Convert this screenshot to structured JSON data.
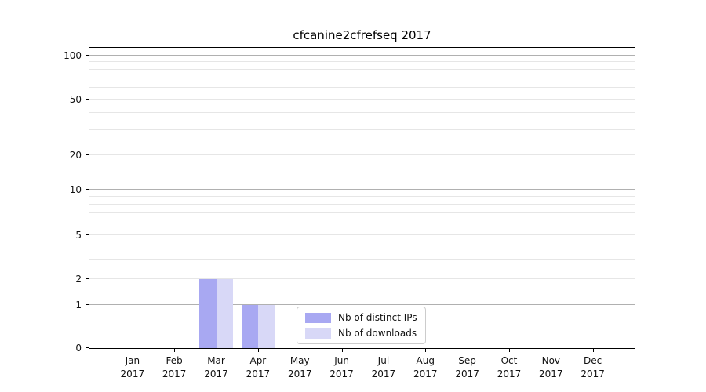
{
  "title": "cfcanine2cfrefseq 2017",
  "chart_data": {
    "type": "bar",
    "title": "cfcanine2cfrefseq 2017",
    "categories": [
      "Jan",
      "Feb",
      "Mar",
      "Apr",
      "May",
      "Jun",
      "Jul",
      "Aug",
      "Sep",
      "Oct",
      "Nov",
      "Dec"
    ],
    "x_year_label": "2017",
    "series": [
      {
        "name": "Nb of distinct IPs",
        "color": "#a8a8f2",
        "values": [
          0,
          0,
          2,
          1,
          0,
          0,
          0,
          0,
          0,
          0,
          0,
          0
        ]
      },
      {
        "name": "Nb of downloads",
        "color": "#d8d8f7",
        "values": [
          0,
          0,
          2,
          1,
          0,
          0,
          0,
          0,
          0,
          0,
          0,
          0
        ]
      }
    ],
    "yscale": "symlog",
    "ylim": [
      0,
      110
    ],
    "yticks": [
      0,
      1,
      2,
      5,
      10,
      20,
      50,
      100
    ],
    "y_major_gridlines": [
      1,
      10,
      100
    ],
    "y_minor_gridlines": [
      2,
      5,
      20,
      50,
      3,
      4,
      6,
      7,
      8,
      9,
      30,
      40,
      60,
      70,
      80,
      90
    ],
    "grid": "horizontal major and minor, light gray",
    "legend": {
      "position": "lower center inside plot",
      "entries": [
        "Nb of distinct IPs",
        "Nb of downloads"
      ]
    }
  }
}
